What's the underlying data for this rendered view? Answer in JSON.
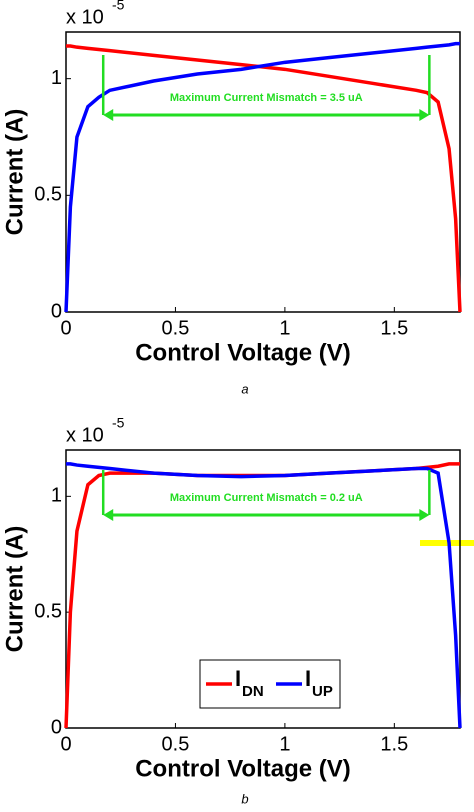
{
  "chart_data": [
    {
      "type": "line",
      "caption": "a",
      "x_label": "Control Voltage (V)",
      "y_label": "Current (A)",
      "axis_multiplier": "x 10",
      "axis_exponent": "-5",
      "annotation": "Maximum Current Mismatch = 3.5 uA",
      "xlim": [
        0,
        1.8
      ],
      "ylim": [
        0,
        1.2
      ],
      "xticks": [
        0,
        0.5,
        1,
        1.5
      ],
      "yticks": [
        0,
        0.5,
        1
      ],
      "x": [
        0,
        0.02,
        0.05,
        0.1,
        0.15,
        0.2,
        0.4,
        0.6,
        0.8,
        1.0,
        1.2,
        1.4,
        1.6,
        1.65,
        1.7,
        1.75,
        1.78,
        1.8
      ],
      "series": [
        {
          "color": "#ff0000",
          "values": [
            1.14,
            1.14,
            1.135,
            1.13,
            1.125,
            1.12,
            1.1,
            1.08,
            1.06,
            1.04,
            1.01,
            0.98,
            0.95,
            0.94,
            0.9,
            0.7,
            0.4,
            0
          ]
        },
        {
          "color": "#0000ff",
          "values": [
            0,
            0.45,
            0.75,
            0.88,
            0.92,
            0.95,
            0.99,
            1.02,
            1.04,
            1.07,
            1.09,
            1.11,
            1.13,
            1.135,
            1.14,
            1.145,
            1.15,
            1.15
          ]
        }
      ]
    },
    {
      "type": "line",
      "caption": "b",
      "x_label": "Control Voltage (V)",
      "y_label": "Current (A)",
      "axis_multiplier": "x 10",
      "axis_exponent": "-5",
      "annotation": "Maximum Current Mismatch = 0.2 uA",
      "xlim": [
        0,
        1.8
      ],
      "ylim": [
        0,
        1.2
      ],
      "xticks": [
        0,
        0.5,
        1,
        1.5
      ],
      "yticks": [
        0,
        0.5,
        1
      ],
      "x": [
        0,
        0.02,
        0.05,
        0.1,
        0.15,
        0.2,
        0.4,
        0.6,
        0.8,
        1.0,
        1.2,
        1.4,
        1.6,
        1.65,
        1.7,
        1.75,
        1.78,
        1.8
      ],
      "series": [
        {
          "name": "I",
          "subscript": "DN",
          "color": "#ff0000",
          "values": [
            0,
            0.5,
            0.85,
            1.05,
            1.09,
            1.1,
            1.1,
            1.09,
            1.09,
            1.09,
            1.1,
            1.11,
            1.12,
            1.125,
            1.13,
            1.14,
            1.14,
            1.14
          ]
        },
        {
          "name": "I",
          "subscript": "UP",
          "color": "#0000ff",
          "values": [
            1.14,
            1.14,
            1.135,
            1.13,
            1.125,
            1.12,
            1.1,
            1.09,
            1.085,
            1.09,
            1.1,
            1.11,
            1.12,
            1.12,
            1.1,
            0.8,
            0.4,
            0
          ]
        }
      ]
    }
  ]
}
